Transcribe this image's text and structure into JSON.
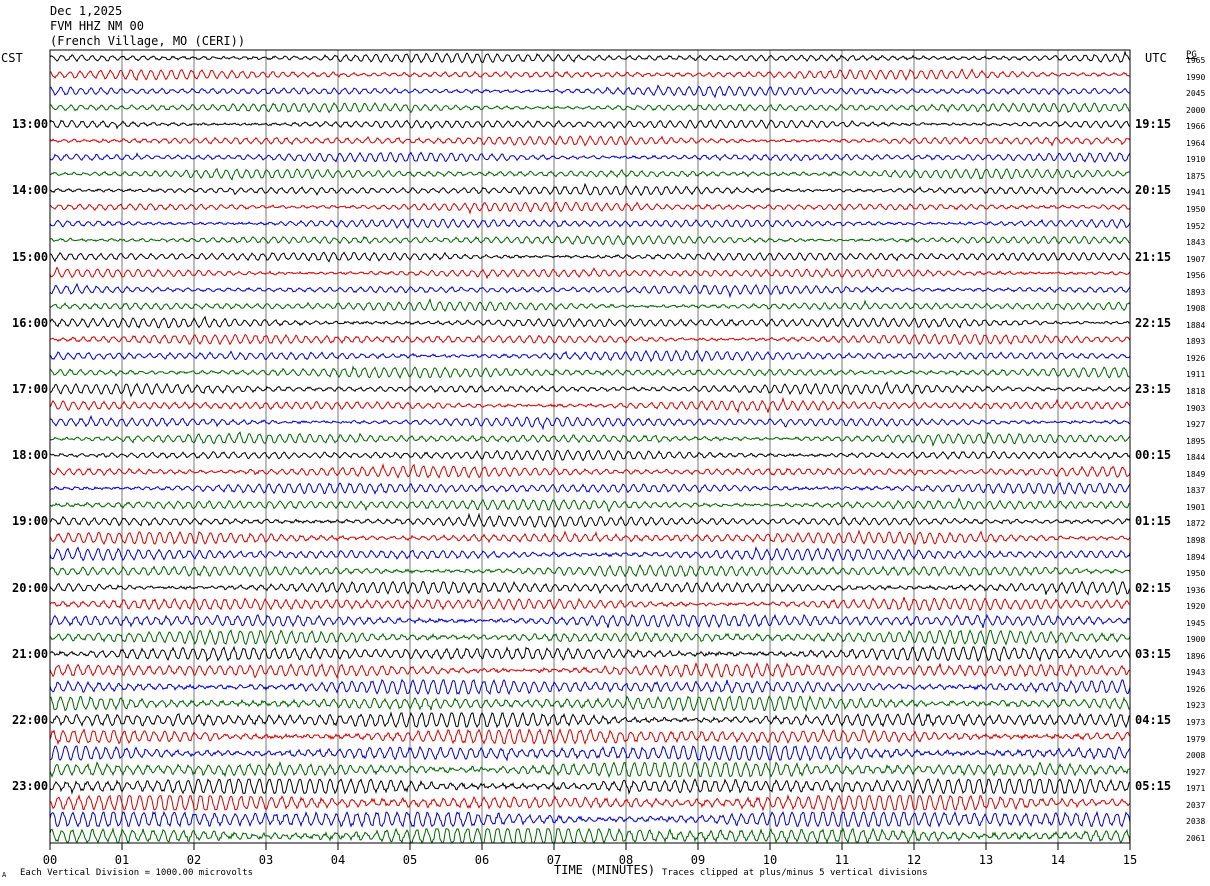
{
  "header": {
    "date": "Dec 1,2025",
    "station": "FVM HHZ NM 00",
    "location": "(French Village, MO (CERI))"
  },
  "left_axis_title": "CST",
  "right_axis_title": "UTC",
  "count_column_title": "PG",
  "chart_data": {
    "type": "line",
    "title": "Dec 1,2025 FVM HHZ NM 00 (French Village, MO (CERI))",
    "xlabel": "TIME (MINUTES)",
    "xlim": [
      0,
      15
    ],
    "x_ticks": [
      "00",
      "01",
      "02",
      "03",
      "04",
      "05",
      "06",
      "07",
      "08",
      "09",
      "10",
      "11",
      "12",
      "13",
      "14",
      "15"
    ],
    "rows_per_hour": 4,
    "row_colors": [
      "#000000",
      "#d40000",
      "#0000d0",
      "#006400"
    ],
    "left_hour_labels": [
      "13:00",
      "14:00",
      "15:00",
      "16:00",
      "17:00",
      "18:00",
      "19:00",
      "20:00",
      "21:00",
      "22:00",
      "23:00"
    ],
    "right_hour_labels": [
      "19:15",
      "20:15",
      "21:15",
      "22:15",
      "23:15",
      "00:15",
      "01:15",
      "02:15",
      "03:15",
      "04:15",
      "05:15"
    ],
    "first_labeled_row_index": 4,
    "row_counts": [
      "1965",
      "1990",
      "2045",
      "2000",
      "1966",
      "1964",
      "1910",
      "1875",
      "1941",
      "1950",
      "1952",
      "1843",
      "1907",
      "1956",
      "1893",
      "1908",
      "1884",
      "1893",
      "1926",
      "1911",
      "1818",
      "1903",
      "1927",
      "1895",
      "1844",
      "1849",
      "1837",
      "1901",
      "1872",
      "1898",
      "1894",
      "1950",
      "1936",
      "1920",
      "1945",
      "1900",
      "1896",
      "1943",
      "1926",
      "1923",
      "1973",
      "1979",
      "2008",
      "1927",
      "1971",
      "2037",
      "2038",
      "2061"
    ],
    "row_amplitude": [
      1.0,
      1.0,
      1.0,
      1.0,
      1.0,
      1.0,
      1.0,
      1.0,
      1.0,
      1.0,
      1.0,
      1.0,
      1.0,
      1.0,
      1.0,
      1.0,
      1.1,
      1.1,
      1.1,
      1.1,
      1.1,
      1.1,
      1.1,
      1.1,
      1.1,
      1.2,
      1.2,
      1.2,
      1.2,
      1.3,
      1.3,
      1.3,
      1.4,
      1.4,
      1.5,
      1.5,
      1.6,
      1.6,
      1.7,
      1.7,
      1.8,
      1.8,
      1.9,
      1.9,
      2.0,
      2.0,
      2.1,
      2.2
    ],
    "vertical_division_microvolts": 1000.0,
    "clip_divisions": 5
  },
  "footer": {
    "scale_note": "Each Vertical Division = 1000.00 microvolts",
    "clip_note": "Traces clipped at plus/minus 5 vertical divisions",
    "corner_mark": "A"
  }
}
